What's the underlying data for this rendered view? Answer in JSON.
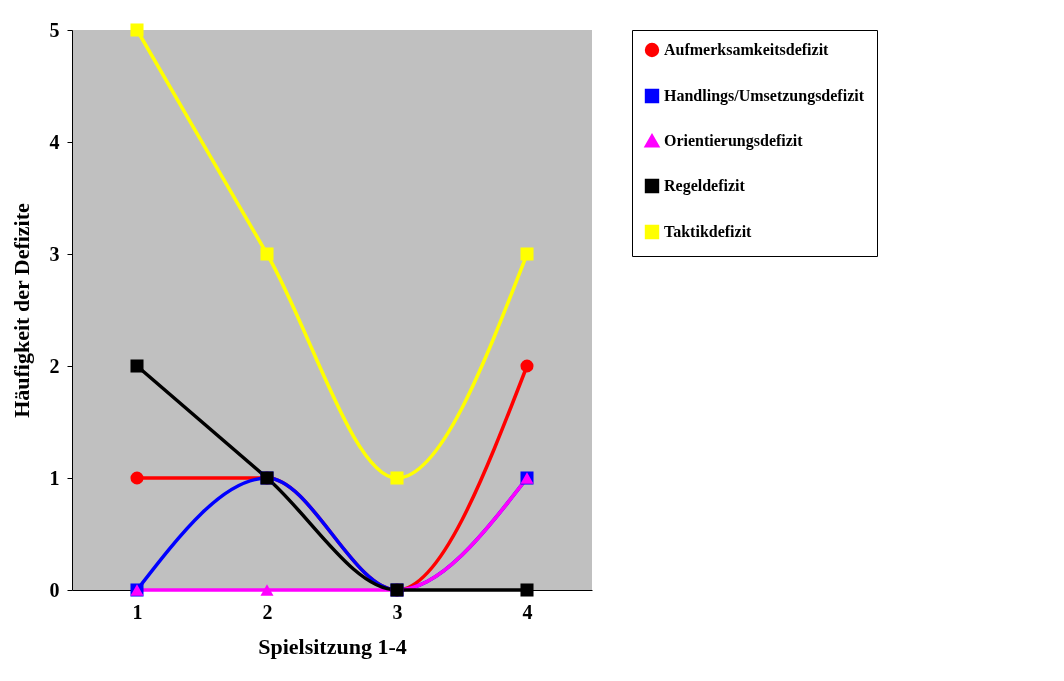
{
  "chart_data": {
    "type": "line",
    "xlabel": "Spielsitzung 1-4",
    "ylabel": "Häufigkeit der Defizite",
    "categories": [
      "1",
      "2",
      "3",
      "4"
    ],
    "series": [
      {
        "name": "Aufmerksamkeitsdefizit",
        "color": "#ff0000",
        "marker": "circle",
        "values": [
          1,
          1,
          0,
          2
        ]
      },
      {
        "name": "Handlings/Umsetzungsdefizit",
        "color": "#0000ff",
        "marker": "square",
        "values": [
          0,
          1,
          0,
          1
        ]
      },
      {
        "name": "Orientierungsdefizit",
        "color": "#ff00ff",
        "marker": "triangle",
        "values": [
          0,
          0,
          0,
          1
        ]
      },
      {
        "name": "Regeldefizit",
        "color": "#000000",
        "marker": "square",
        "values": [
          2,
          1,
          0,
          0
        ]
      },
      {
        "name": "Taktikdefizit",
        "color": "#ffff00",
        "marker": "square",
        "values": [
          5,
          3,
          1,
          3
        ]
      }
    ],
    "ylim": [
      0,
      5
    ],
    "yticks": [
      0,
      1,
      2,
      3,
      4,
      5
    ],
    "grid": false,
    "legend": "right",
    "line_style": "solid"
  }
}
